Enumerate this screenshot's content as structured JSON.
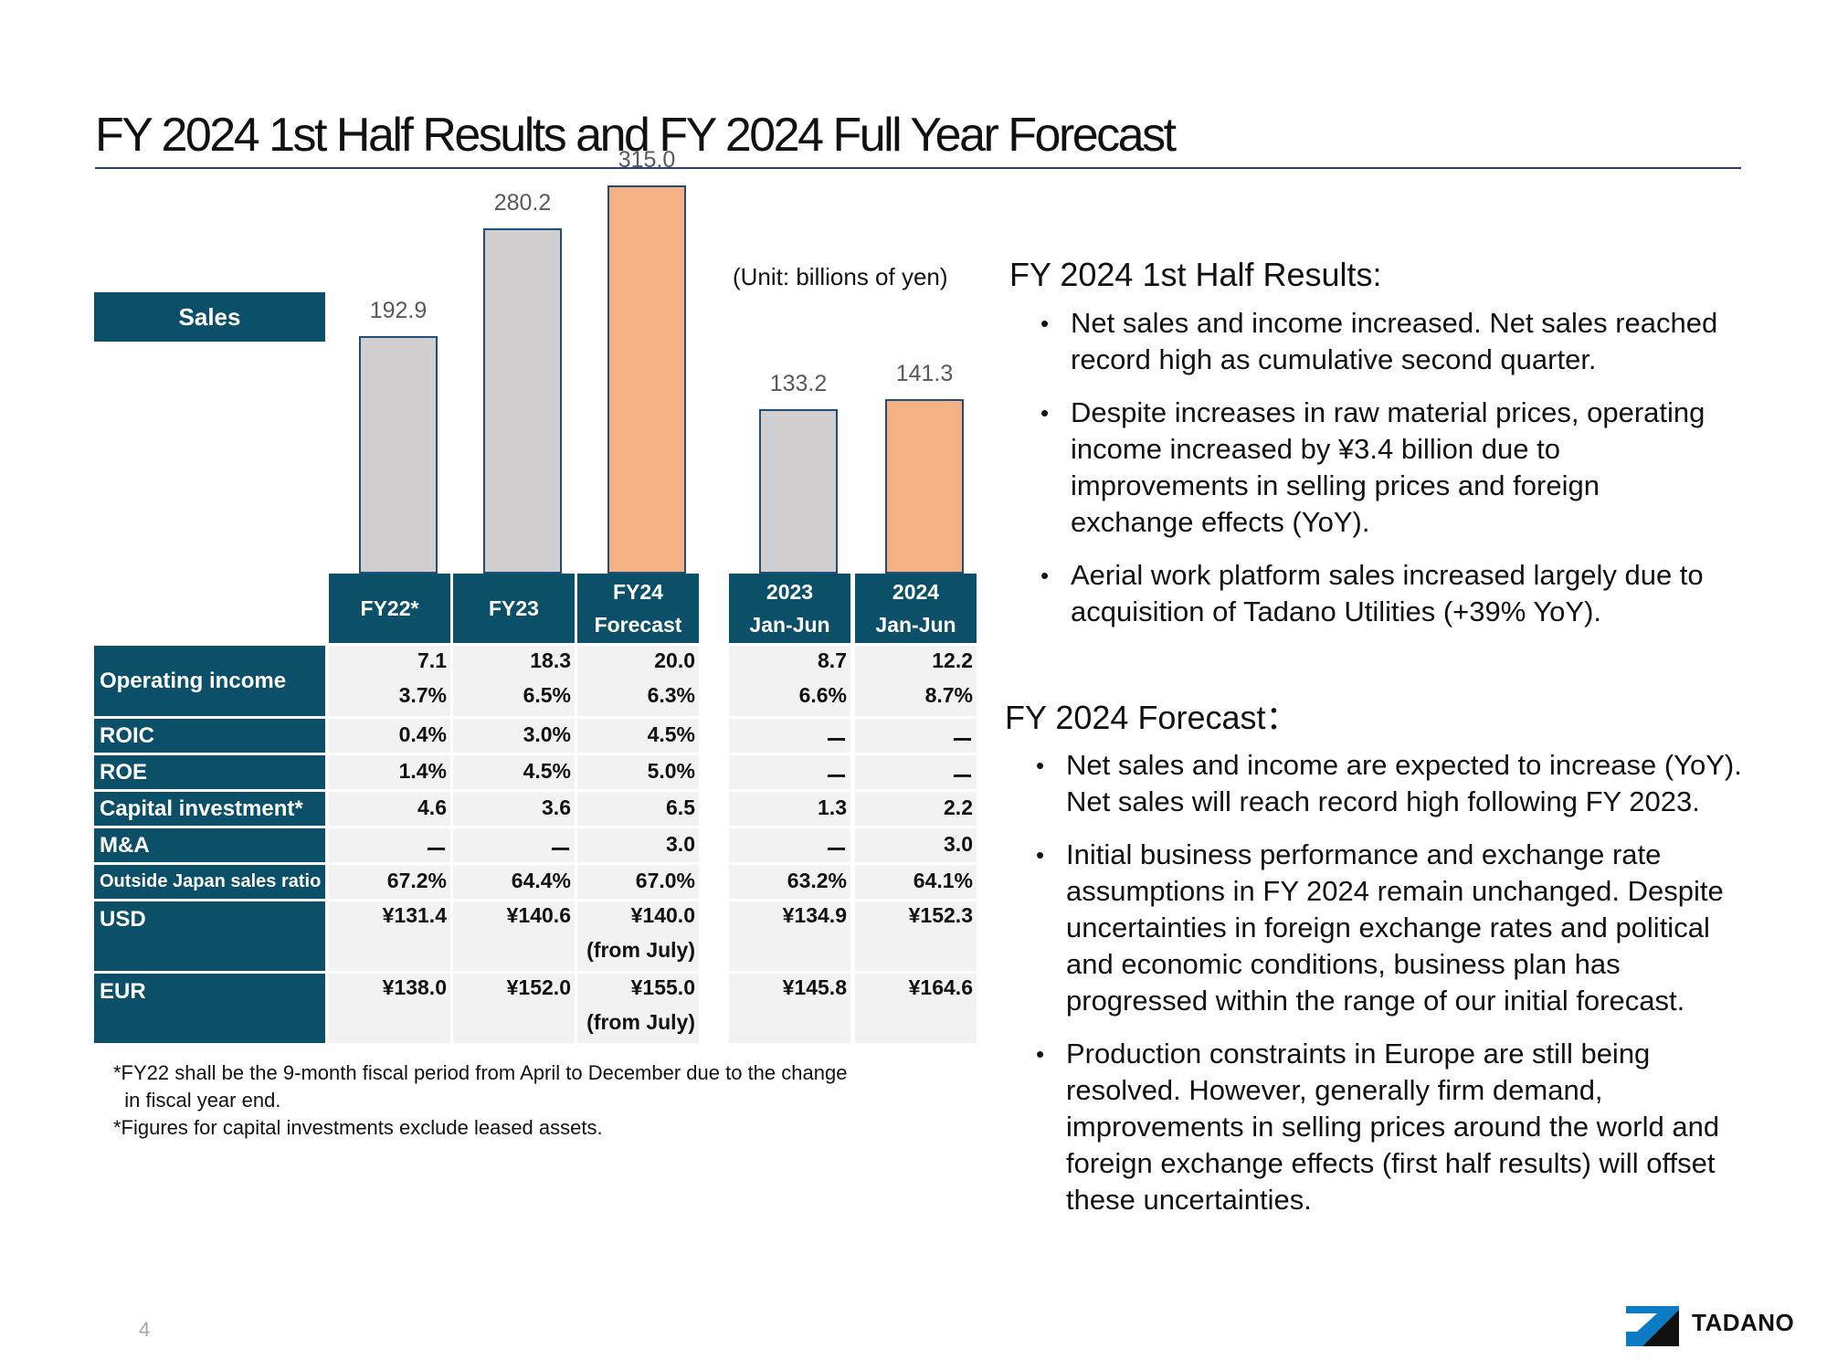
{
  "title": "FY 2024 1st Half Results and FY 2024 Full Year Forecast",
  "sales_label": "Sales",
  "unit": "(Unit: billions of yen)",
  "chart_data": {
    "type": "bar",
    "categories": [
      "FY22*",
      "FY23",
      "FY24 Forecast",
      "2023 Jan-Jun",
      "2024 Jan-Jun"
    ],
    "values": [
      192.9,
      280.2,
      315.0,
      133.2,
      141.3
    ],
    "value_labels": [
      "192.9",
      "280.2",
      "315.0",
      "133.2",
      "141.3"
    ],
    "highlight": [
      false,
      false,
      true,
      false,
      true
    ],
    "colors": {
      "gray": "#d0cece",
      "orange": "#f4b183",
      "border": "#1f4e79"
    }
  },
  "columns": [
    {
      "l1": "FY22*",
      "l2": ""
    },
    {
      "l1": "FY23",
      "l2": ""
    },
    {
      "l1": "FY24",
      "l2": "Forecast"
    },
    {
      "l1": "2023",
      "l2": "Jan-Jun"
    },
    {
      "l1": "2024",
      "l2": "Jan-Jun"
    }
  ],
  "rows": {
    "op_income": {
      "label": "Operating income",
      "values": [
        [
          "7.1",
          "3.7%"
        ],
        [
          "18.3",
          "6.5%"
        ],
        [
          "20.0",
          "6.3%"
        ],
        [
          "8.7",
          "6.6%"
        ],
        [
          "12.2",
          "8.7%"
        ]
      ]
    },
    "roic": {
      "label": "ROIC",
      "values": [
        "0.4%",
        "3.0%",
        "4.5%",
        "ー",
        "ー"
      ]
    },
    "roe": {
      "label": "ROE",
      "values": [
        "1.4%",
        "4.5%",
        "5.0%",
        "ー",
        "ー"
      ]
    },
    "capex": {
      "label": "Capital investment*",
      "values": [
        "4.6",
        "3.6",
        "6.5",
        "1.3",
        "2.2"
      ]
    },
    "ma": {
      "label": "M&A",
      "values": [
        "ー",
        "ー",
        "3.0",
        "ー",
        "3.0"
      ]
    },
    "outside": {
      "label": "Outside Japan sales ratio",
      "values": [
        "67.2%",
        "64.4%",
        "67.0%",
        "63.2%",
        "64.1%"
      ]
    },
    "usd": {
      "label": "USD",
      "values": [
        [
          "¥131.4",
          ""
        ],
        [
          "¥140.6",
          ""
        ],
        [
          "¥140.0",
          "(from July)"
        ],
        [
          "¥134.9",
          ""
        ],
        [
          "¥152.3",
          ""
        ]
      ]
    },
    "eur": {
      "label": "EUR",
      "values": [
        [
          "¥138.0",
          ""
        ],
        [
          "¥152.0",
          ""
        ],
        [
          "¥155.0",
          "(from July)"
        ],
        [
          "¥145.8",
          ""
        ],
        [
          "¥164.6",
          ""
        ]
      ]
    }
  },
  "footnotes": [
    "*FY22 shall be the 9-month fiscal period from April to December due to the change",
    "  in fiscal year end.",
    "*Figures for capital investments exclude leased assets."
  ],
  "results": {
    "heading": "FY 2024 1st Half Results:",
    "bullets": [
      [
        "Net sales and income increased. Net sales reached",
        "record high as cumulative second quarter."
      ],
      [
        "Despite increases in raw material prices, operating",
        "income increased by ¥3.4 billion due to",
        "improvements in selling prices and foreign",
        "exchange effects (YoY)."
      ],
      [
        "Aerial work platform sales increased largely due to",
        "acquisition of Tadano Utilities (+39% YoY)."
      ]
    ]
  },
  "forecast": {
    "heading": "FY 2024 Forecast：",
    "bullets": [
      [
        "Net sales and income are expected to increase (YoY).",
        "Net sales will reach record high following FY 2023."
      ],
      [
        "Initial business performance and exchange rate",
        "assumptions in FY 2024 remain unchanged. Despite",
        "uncertainties in foreign exchange rates and political",
        "and economic conditions, business plan has",
        "progressed within the range of our initial forecast."
      ],
      [
        "Production constraints in Europe are still being",
        "resolved. However, generally firm demand,",
        "improvements in selling prices around the world and",
        "foreign exchange effects (first half results) will offset",
        "these uncertainties."
      ]
    ]
  },
  "page_number": "4",
  "logo_text": "TADANO"
}
